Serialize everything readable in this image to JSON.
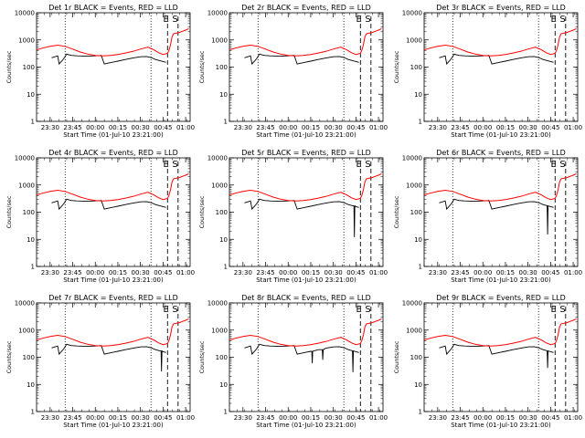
{
  "chart_data": {
    "type": "line",
    "rows": 3,
    "cols": 3,
    "shared": {
      "y_scale": "log",
      "ylim": [
        1,
        10000
      ],
      "ylabel": "Counts/sec",
      "xlabel": "Start Time (01-Jul-10 23:21:00)",
      "y_ticks": [
        "1",
        "10",
        "100",
        "1000",
        "10000"
      ],
      "x_ticks": [
        "23:30",
        "23:45",
        "00:00",
        "00:15",
        "00:30",
        "00:45",
        "01:00"
      ],
      "x_tick_minutes": [
        9,
        24,
        39,
        54,
        69,
        84,
        99
      ],
      "xlim_minutes": [
        0,
        102
      ],
      "dotted_lines_minutes": [
        19,
        76
      ],
      "dashed_lines_minutes": [
        87,
        94
      ],
      "markers": [
        {
          "label": "E",
          "minute": 86
        },
        {
          "label": "S",
          "minute": 92
        }
      ],
      "series": [
        {
          "color": "#000000"
        },
        {
          "color": "#ff0000"
        }
      ],
      "red_series": {
        "x_minutes": [
          0,
          4,
          9,
          14,
          19,
          24,
          29,
          34,
          39,
          44,
          49,
          54,
          59,
          64,
          69,
          74,
          78,
          81,
          84,
          87,
          88,
          89,
          90,
          91,
          93,
          95,
          97,
          99,
          101
        ],
        "y": [
          430,
          500,
          580,
          640,
          580,
          460,
          360,
          300,
          270,
          260,
          270,
          290,
          330,
          380,
          460,
          540,
          430,
          340,
          290,
          320,
          420,
          680,
          1300,
          1700,
          1800,
          1900,
          2100,
          2300,
          2600
        ]
      },
      "black_series": {
        "x_minutes": [
          10,
          14,
          15,
          18,
          20,
          23,
          27,
          31,
          35,
          39,
          43,
          45,
          50,
          54,
          59,
          64,
          69,
          73,
          76,
          79,
          82,
          84,
          86
        ],
        "y": [
          220,
          260,
          130,
          200,
          300,
          270,
          260,
          255,
          255,
          260,
          270,
          130,
          150,
          165,
          190,
          215,
          240,
          245,
          225,
          190,
          170,
          160,
          150
        ]
      }
    },
    "panels": [
      {
        "title": "Det 1r BLACK = Events, RED = LLD",
        "dips": []
      },
      {
        "title": "Det 2r BLACK = Events, RED = LLD",
        "dips": []
      },
      {
        "title": "Det 3r BLACK = Events, RED = LLD",
        "dips": []
      },
      {
        "title": "Det 4r BLACK = Events, RED = LLD",
        "dips": []
      },
      {
        "title": "Det 5r BLACK = Events, RED = LLD",
        "dips": [
          {
            "minute": 83,
            "y": 12
          }
        ]
      },
      {
        "title": "Det 6r BLACK = Events, RED = LLD",
        "dips": [
          {
            "minute": 82,
            "y": 15
          }
        ]
      },
      {
        "title": "Det 7r BLACK = Events, RED = LLD",
        "dips": [
          {
            "minute": 83,
            "y": 30
          }
        ]
      },
      {
        "title": "Det 8r BLACK = Events, RED = LLD",
        "dips": [
          {
            "minute": 55,
            "y": 60
          },
          {
            "minute": 62,
            "y": 80
          },
          {
            "minute": 82,
            "y": 28
          }
        ]
      },
      {
        "title": "Det 9r BLACK = Events, RED = LLD",
        "dips": [
          {
            "minute": 82,
            "y": 40
          }
        ]
      }
    ]
  }
}
